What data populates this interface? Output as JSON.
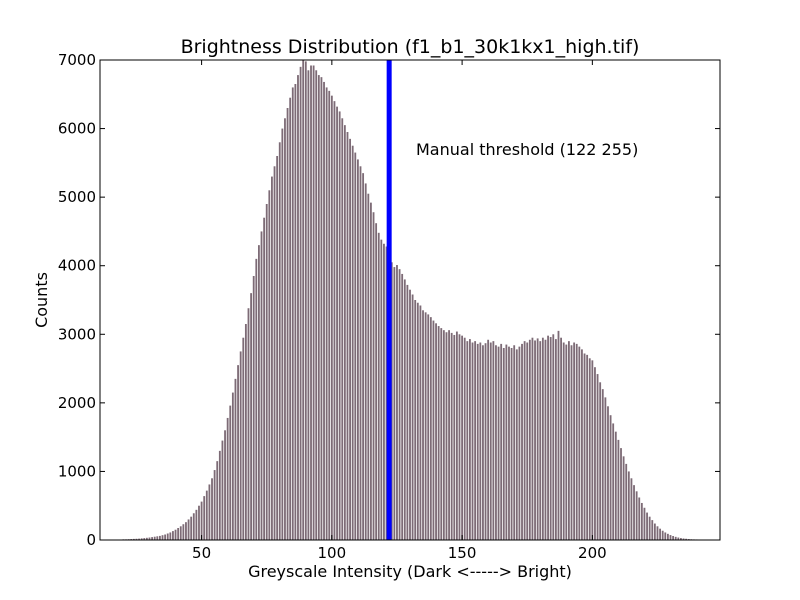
{
  "chart_data": {
    "type": "bar",
    "title": "Brightness Distribution (f1_b1_30k1kx1_high.tif)",
    "xlabel": "Greyscale Intensity (Dark <-----> Bright)",
    "ylabel": "Counts",
    "xlim": [
      11,
      249
    ],
    "ylim": [
      0,
      7000
    ],
    "xticks": [
      50,
      100,
      150,
      200
    ],
    "yticks": [
      0,
      1000,
      2000,
      3000,
      4000,
      5000,
      6000,
      7000
    ],
    "grid": false,
    "bar_color": "#7d6b76",
    "threshold": {
      "x": 122,
      "color": "#0000ff",
      "label": "Manual threshold (122 255)"
    },
    "bins": [
      [
        20,
        10
      ],
      [
        21,
        10
      ],
      [
        22,
        12
      ],
      [
        23,
        14
      ],
      [
        24,
        16
      ],
      [
        25,
        18
      ],
      [
        26,
        20
      ],
      [
        27,
        24
      ],
      [
        28,
        28
      ],
      [
        29,
        32
      ],
      [
        30,
        36
      ],
      [
        31,
        42
      ],
      [
        32,
        48
      ],
      [
        33,
        54
      ],
      [
        34,
        60
      ],
      [
        35,
        70
      ],
      [
        36,
        80
      ],
      [
        37,
        95
      ],
      [
        38,
        110
      ],
      [
        39,
        130
      ],
      [
        40,
        150
      ],
      [
        41,
        175
      ],
      [
        42,
        200
      ],
      [
        43,
        230
      ],
      [
        44,
        260
      ],
      [
        45,
        300
      ],
      [
        46,
        340
      ],
      [
        47,
        390
      ],
      [
        48,
        440
      ],
      [
        49,
        500
      ],
      [
        50,
        560
      ],
      [
        51,
        640
      ],
      [
        52,
        720
      ],
      [
        53,
        810
      ],
      [
        54,
        900
      ],
      [
        55,
        1020
      ],
      [
        56,
        1150
      ],
      [
        57,
        1300
      ],
      [
        58,
        1450
      ],
      [
        59,
        1600
      ],
      [
        60,
        1780
      ],
      [
        61,
        1960
      ],
      [
        62,
        2150
      ],
      [
        63,
        2350
      ],
      [
        64,
        2550
      ],
      [
        65,
        2750
      ],
      [
        66,
        2950
      ],
      [
        67,
        3150
      ],
      [
        68,
        3380
      ],
      [
        69,
        3600
      ],
      [
        70,
        3850
      ],
      [
        71,
        4100
      ],
      [
        72,
        4300
      ],
      [
        73,
        4500
      ],
      [
        74,
        4700
      ],
      [
        75,
        4900
      ],
      [
        76,
        5100
      ],
      [
        77,
        5300
      ],
      [
        78,
        5450
      ],
      [
        79,
        5600
      ],
      [
        80,
        5800
      ],
      [
        81,
        6000
      ],
      [
        82,
        6150
      ],
      [
        83,
        6300
      ],
      [
        84,
        6450
      ],
      [
        85,
        6600
      ],
      [
        86,
        6650
      ],
      [
        87,
        6780
      ],
      [
        88,
        6900
      ],
      [
        89,
        7050
      ],
      [
        90,
        6980
      ],
      [
        91,
        6850
      ],
      [
        92,
        6920
      ],
      [
        93,
        6920
      ],
      [
        94,
        6850
      ],
      [
        95,
        6780
      ],
      [
        96,
        6750
      ],
      [
        97,
        6680
      ],
      [
        98,
        6600
      ],
      [
        99,
        6550
      ],
      [
        100,
        6480
      ],
      [
        101,
        6400
      ],
      [
        102,
        6320
      ],
      [
        103,
        6250
      ],
      [
        104,
        6150
      ],
      [
        105,
        6050
      ],
      [
        106,
        5950
      ],
      [
        107,
        5850
      ],
      [
        108,
        5750
      ],
      [
        109,
        5650
      ],
      [
        110,
        5550
      ],
      [
        111,
        5450
      ],
      [
        112,
        5350
      ],
      [
        113,
        5200
      ],
      [
        114,
        5050
      ],
      [
        115,
        4920
      ],
      [
        116,
        4780
      ],
      [
        117,
        4620
      ],
      [
        118,
        4480
      ],
      [
        119,
        4380
      ],
      [
        120,
        4320
      ],
      [
        121,
        4280
      ],
      [
        122,
        4150
      ],
      [
        123,
        4050
      ],
      [
        124,
        3980
      ],
      [
        125,
        4010
      ],
      [
        126,
        3950
      ],
      [
        127,
        3880
      ],
      [
        128,
        3800
      ],
      [
        129,
        3720
      ],
      [
        130,
        3650
      ],
      [
        131,
        3580
      ],
      [
        132,
        3500
      ],
      [
        133,
        3460
      ],
      [
        134,
        3420
      ],
      [
        135,
        3350
      ],
      [
        136,
        3320
      ],
      [
        137,
        3290
      ],
      [
        138,
        3250
      ],
      [
        139,
        3200
      ],
      [
        140,
        3160
      ],
      [
        141,
        3120
      ],
      [
        142,
        3090
      ],
      [
        143,
        3060
      ],
      [
        144,
        3030
      ],
      [
        145,
        3060
      ],
      [
        146,
        3020
      ],
      [
        147,
        2990
      ],
      [
        148,
        3040
      ],
      [
        149,
        3000
      ],
      [
        150,
        2980
      ],
      [
        151,
        2950
      ],
      [
        152,
        2900
      ],
      [
        153,
        2930
      ],
      [
        154,
        2880
      ],
      [
        155,
        2900
      ],
      [
        156,
        2860
      ],
      [
        157,
        2880
      ],
      [
        158,
        2840
      ],
      [
        159,
        2870
      ],
      [
        160,
        2920
      ],
      [
        161,
        2880
      ],
      [
        162,
        2900
      ],
      [
        163,
        2840
      ],
      [
        164,
        2820
      ],
      [
        165,
        2860
      ],
      [
        166,
        2800
      ],
      [
        167,
        2850
      ],
      [
        168,
        2820
      ],
      [
        169,
        2800
      ],
      [
        170,
        2840
      ],
      [
        171,
        2780
      ],
      [
        172,
        2820
      ],
      [
        173,
        2860
      ],
      [
        174,
        2900
      ],
      [
        175,
        2880
      ],
      [
        176,
        2920
      ],
      [
        177,
        2950
      ],
      [
        178,
        2910
      ],
      [
        179,
        2940
      ],
      [
        180,
        2900
      ],
      [
        181,
        2950
      ],
      [
        182,
        2920
      ],
      [
        183,
        2980
      ],
      [
        184,
        2960
      ],
      [
        185,
        3000
      ],
      [
        186,
        2930
      ],
      [
        187,
        3050
      ],
      [
        188,
        2950
      ],
      [
        189,
        2880
      ],
      [
        190,
        2850
      ],
      [
        191,
        2900
      ],
      [
        192,
        2840
      ],
      [
        193,
        2880
      ],
      [
        194,
        2860
      ],
      [
        195,
        2820
      ],
      [
        196,
        2780
      ],
      [
        197,
        2720
      ],
      [
        198,
        2700
      ],
      [
        199,
        2650
      ],
      [
        200,
        2620
      ],
      [
        201,
        2520
      ],
      [
        202,
        2420
      ],
      [
        203,
        2300
      ],
      [
        204,
        2200
      ],
      [
        205,
        2080
      ],
      [
        206,
        1950
      ],
      [
        207,
        1820
      ],
      [
        208,
        1700
      ],
      [
        209,
        1580
      ],
      [
        210,
        1460
      ],
      [
        211,
        1340
      ],
      [
        212,
        1220
      ],
      [
        213,
        1110
      ],
      [
        214,
        1000
      ],
      [
        215,
        900
      ],
      [
        216,
        800
      ],
      [
        217,
        710
      ],
      [
        218,
        620
      ],
      [
        219,
        540
      ],
      [
        220,
        470
      ],
      [
        221,
        400
      ],
      [
        222,
        340
      ],
      [
        223,
        290
      ],
      [
        224,
        240
      ],
      [
        225,
        200
      ],
      [
        226,
        165
      ],
      [
        227,
        135
      ],
      [
        228,
        110
      ],
      [
        229,
        90
      ],
      [
        230,
        72
      ],
      [
        231,
        58
      ],
      [
        232,
        46
      ],
      [
        233,
        36
      ],
      [
        234,
        28
      ],
      [
        235,
        22
      ],
      [
        236,
        18
      ],
      [
        237,
        14
      ],
      [
        238,
        11
      ],
      [
        239,
        9
      ],
      [
        240,
        8
      ],
      [
        241,
        7
      ],
      [
        242,
        6
      ],
      [
        243,
        5
      ],
      [
        244,
        4
      ],
      [
        245,
        4
      ],
      [
        246,
        3
      ],
      [
        247,
        3
      ],
      [
        248,
        2
      ]
    ]
  }
}
